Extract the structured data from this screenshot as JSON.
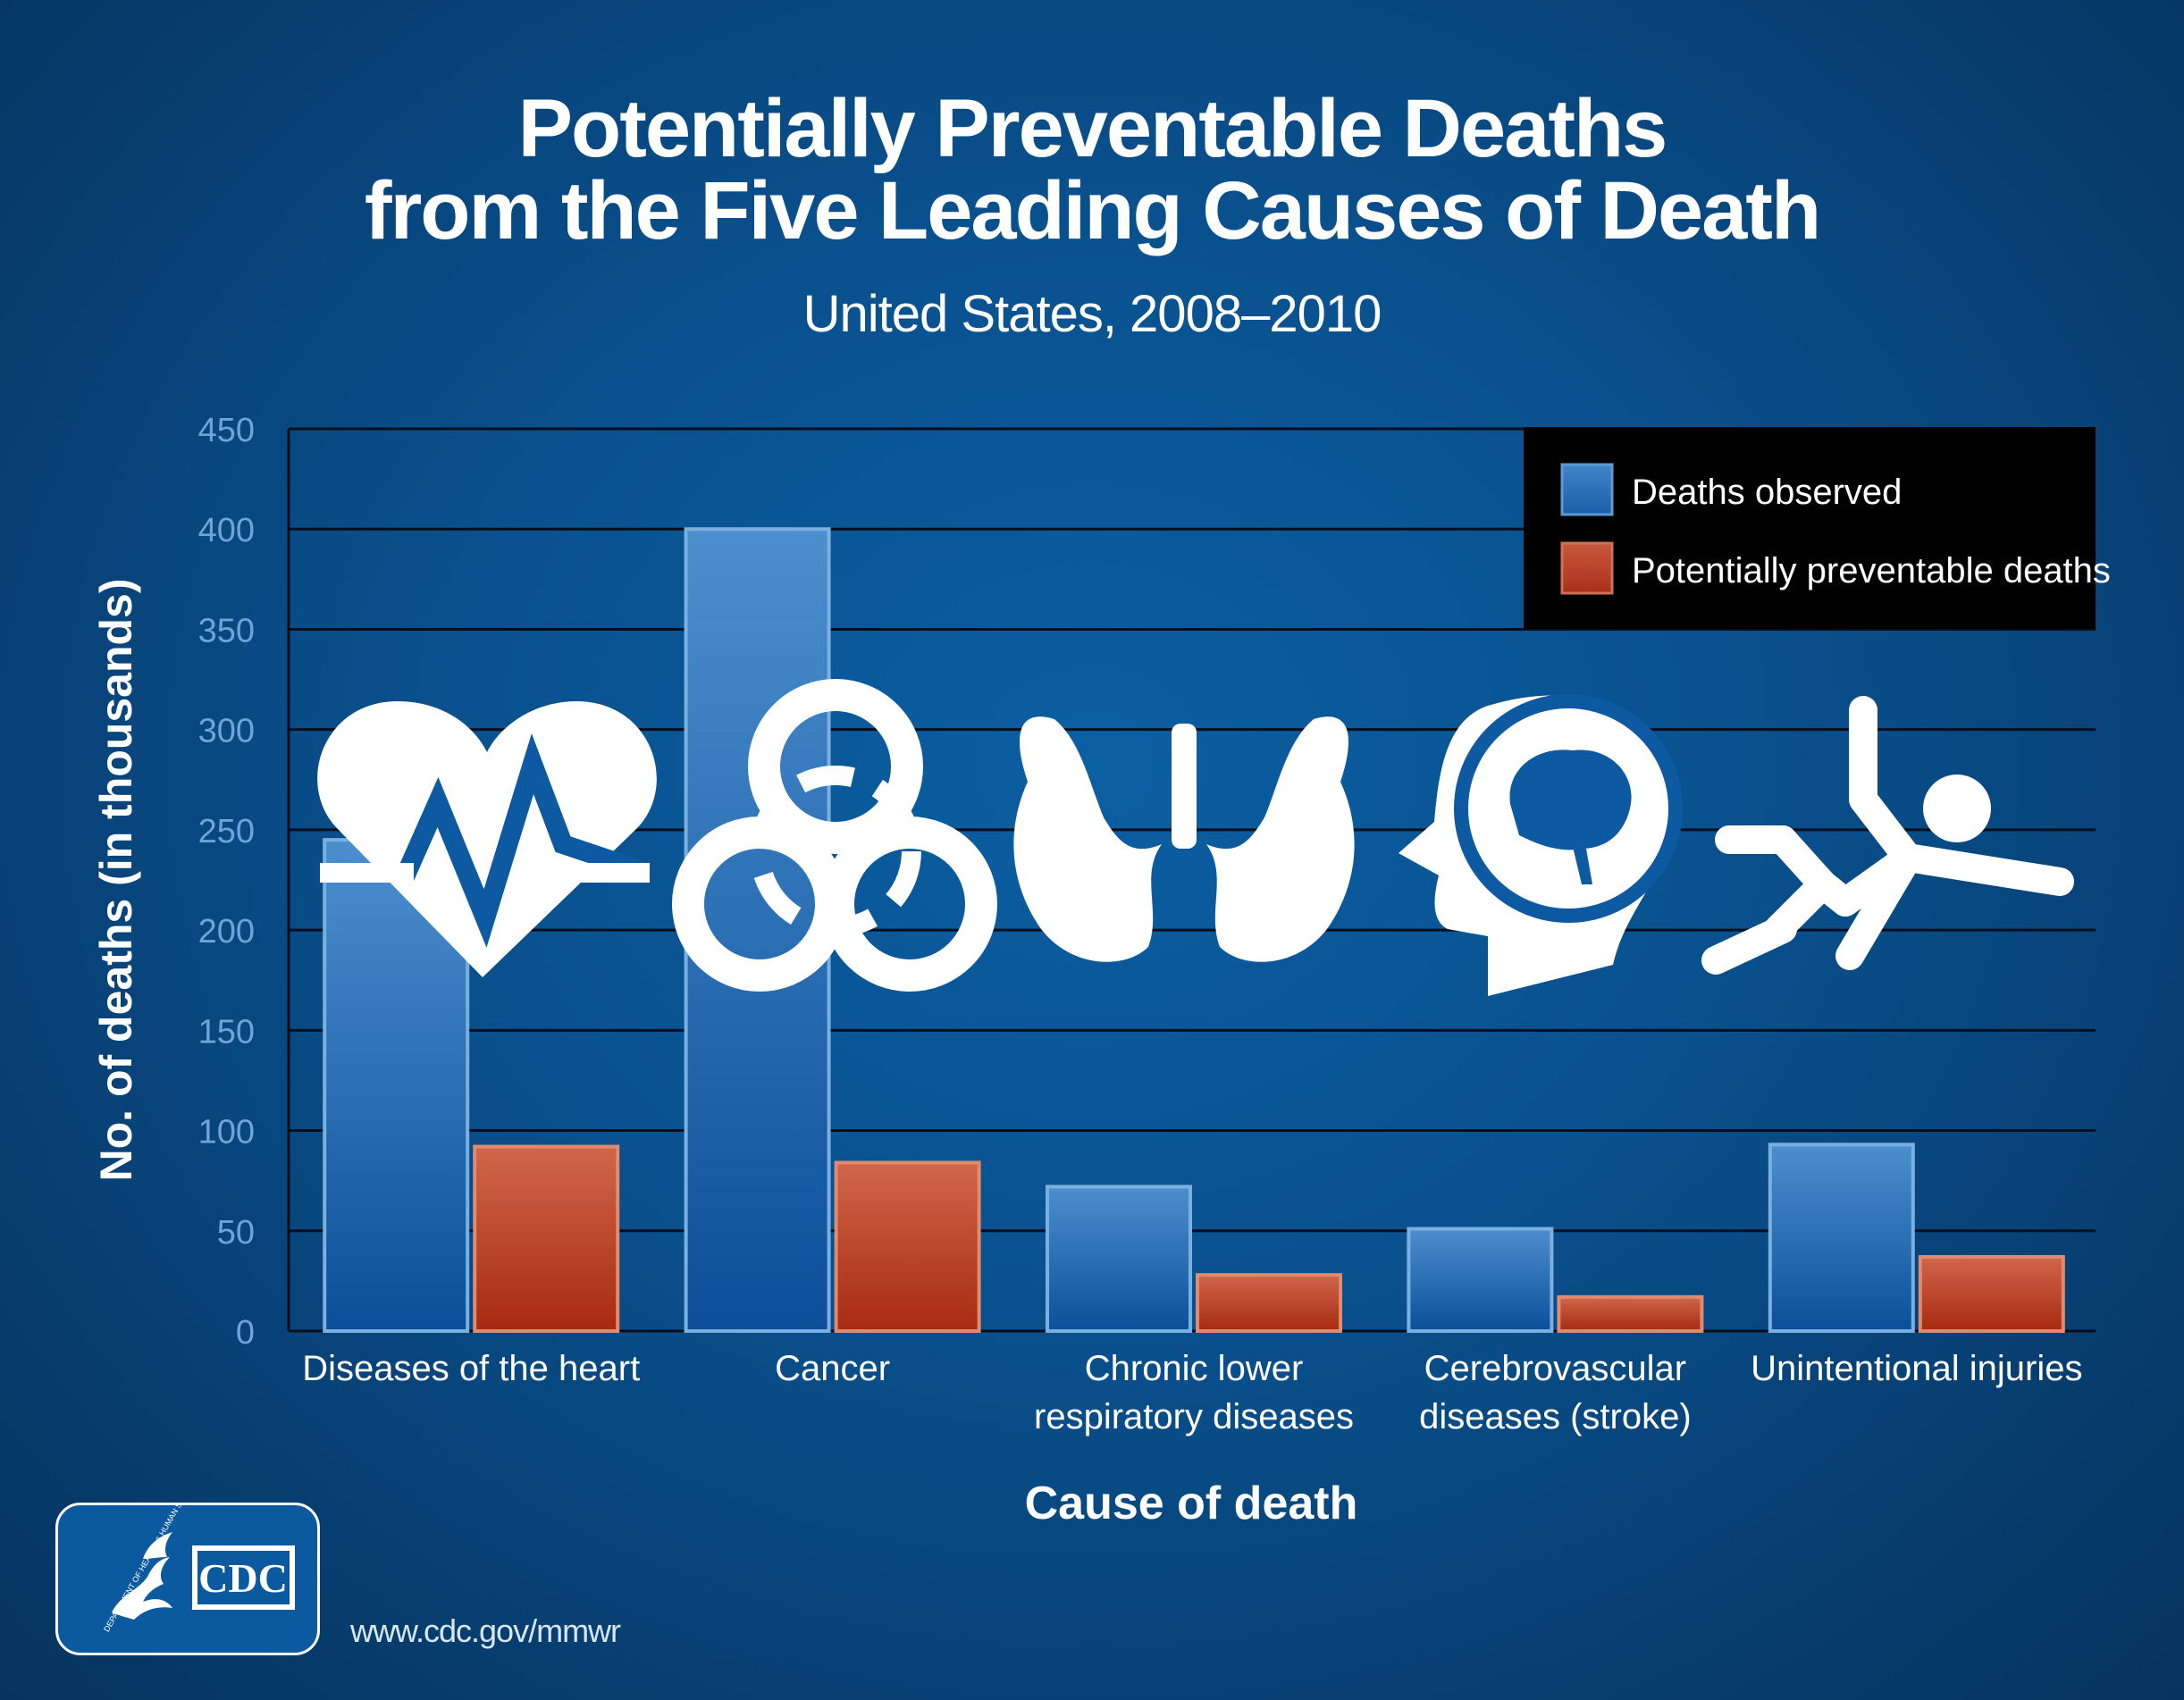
{
  "title_line1": "Potentially Preventable Deaths",
  "title_line2": "from the Five Leading Causes of Death",
  "subtitle": "United States, 2008–2010",
  "footer_url": "www.cdc.gov/mmwr",
  "logo": {
    "text": "CDC",
    "seal_text": "DEPARTMENT OF HEALTH & HUMAN SERVICES"
  },
  "icons": [
    "heartbeat-icon",
    "biohazard-icon",
    "lungs-icon",
    "head-brain-icon",
    "falling-person-icon"
  ],
  "colors": {
    "observed": "#2f78bf",
    "preventable": "#c2462c",
    "gridline": "#050e1c",
    "axis_text": "#6fa4d6",
    "legend_bg": "#000000"
  },
  "chart_data": {
    "type": "bar",
    "categories": [
      [
        "Diseases of the heart"
      ],
      [
        "Cancer"
      ],
      [
        "Chronic lower",
        "respiratory diseases"
      ],
      [
        "Cerebrovascular",
        "diseases (stroke)"
      ],
      [
        "Unintentional injuries"
      ]
    ],
    "series": [
      {
        "name": "Deaths observed",
        "values": [
          245,
          400,
          72,
          51,
          93
        ]
      },
      {
        "name": "Potentially preventable deaths",
        "values": [
          92,
          84,
          28,
          17,
          37
        ]
      }
    ],
    "xlabel": "Cause of death",
    "ylabel": "No. of deaths (in thousands)",
    "ylim": [
      0,
      450
    ],
    "yticks": [
      "0",
      "50",
      "100",
      "150",
      "200",
      "250",
      "300",
      "350",
      "400",
      "450"
    ],
    "grid": true,
    "legend_position": "top-right"
  }
}
